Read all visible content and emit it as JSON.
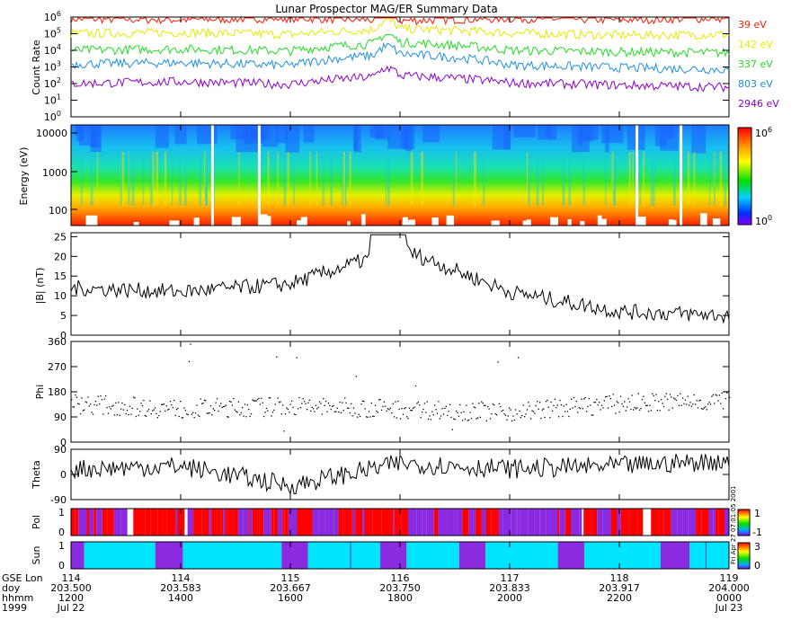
{
  "title": "Lunar Prospector MAG/ER Summary Data",
  "colors": {
    "axis": "#000000",
    "c39": "#ff1a00",
    "c142": "#e8e800",
    "c337": "#22dd22",
    "c803": "#1f8fe0",
    "c2946": "#8a00cc",
    "pol_pos": "#ff0000",
    "pol_neg": "#8a2be2",
    "sun_in": "#00e5ff",
    "sun_out": "#8a2be2"
  },
  "time_axis": {
    "row_labels": [
      "GSE Lon",
      "doy",
      "hhmm",
      "1999"
    ],
    "ticks": [
      {
        "lon": "114",
        "doy": "203.500",
        "hhmm": "1200",
        "date": "Jul 22"
      },
      {
        "lon": "114",
        "doy": "203.583",
        "hhmm": "1400",
        "date": ""
      },
      {
        "lon": "115",
        "doy": "203.667",
        "hhmm": "1600",
        "date": ""
      },
      {
        "lon": "116",
        "doy": "203.750",
        "hhmm": "1800",
        "date": ""
      },
      {
        "lon": "117",
        "doy": "203.833",
        "hhmm": "2000",
        "date": ""
      },
      {
        "lon": "118",
        "doy": "203.917",
        "hhmm": "2200",
        "date": ""
      },
      {
        "lon": "119",
        "doy": "204.000",
        "hhmm": "0000",
        "date": "Jul 23"
      }
    ]
  },
  "side_text": "Fri Apr 27 07:01:05 2001",
  "chart_data": [
    {
      "type": "line",
      "ylabel": "Count Rate",
      "yscale": "log",
      "ylim": [
        1,
        1000000
      ],
      "ytick_labels": [
        "10^0",
        "10^1",
        "10^2",
        "10^3",
        "10^4",
        "10^5",
        "10^6"
      ],
      "x": [
        203.5,
        203.583,
        203.667,
        203.75,
        203.833,
        203.917,
        204.0
      ],
      "series": [
        {
          "name": "39 eV",
          "values": [
            800000,
            700000,
            900000,
            600000,
            850000,
            700000,
            900000
          ]
        },
        {
          "name": "142 eV",
          "values": [
            100000,
            120000,
            90000,
            200000,
            110000,
            80000,
            90000
          ]
        },
        {
          "name": "337 eV",
          "values": [
            10000,
            12000,
            9000,
            30000,
            10000,
            8000,
            7000
          ]
        },
        {
          "name": "803 eV",
          "values": [
            1500,
            1800,
            1200,
            6000,
            1300,
            900,
            700
          ]
        },
        {
          "name": "2946 eV",
          "values": [
            100,
            130,
            90,
            300,
            110,
            80,
            60
          ]
        }
      ]
    },
    {
      "type": "heatmap",
      "ylabel": "Energy (eV)",
      "yscale": "log",
      "ytick_labels": [
        "10000",
        "1000",
        "100"
      ],
      "colorbar_labels": [
        "10^0",
        "10^6"
      ]
    },
    {
      "type": "line",
      "ylabel": "|B| (nT)",
      "ylim": [
        0,
        26
      ],
      "ytick_labels": [
        "0",
        "5",
        "10",
        "15",
        "20",
        "25"
      ],
      "x": [
        203.5,
        203.583,
        203.667,
        203.75,
        203.833,
        203.917,
        204.0
      ],
      "values": [
        12,
        11,
        13,
        22,
        11,
        6,
        5
      ]
    },
    {
      "type": "scatter",
      "ylabel": "Phi",
      "ylim": [
        0,
        360
      ],
      "ytick_labels": [
        "0",
        "90",
        "180",
        "270",
        "360"
      ],
      "x": [
        203.5,
        203.583,
        203.667,
        203.75,
        203.833,
        203.917,
        204.0
      ],
      "values": [
        140,
        120,
        130,
        120,
        110,
        140,
        150
      ]
    },
    {
      "type": "line",
      "ylabel": "Theta",
      "ylim": [
        -90,
        90
      ],
      "ytick_labels": [
        "-90",
        "0",
        "90"
      ],
      "x": [
        203.5,
        203.583,
        203.667,
        203.75,
        203.833,
        203.917,
        204.0
      ],
      "values": [
        20,
        30,
        -40,
        40,
        20,
        30,
        50
      ]
    },
    {
      "type": "heatmap",
      "ylabel": "Pol",
      "ytick_labels": [
        "0",
        "1"
      ],
      "colorbar_labels": [
        "1",
        "-1"
      ]
    },
    {
      "type": "heatmap",
      "ylabel": "Sun",
      "ytick_labels": [
        "0",
        "1"
      ],
      "colorbar_labels": [
        "3",
        "0"
      ]
    }
  ]
}
